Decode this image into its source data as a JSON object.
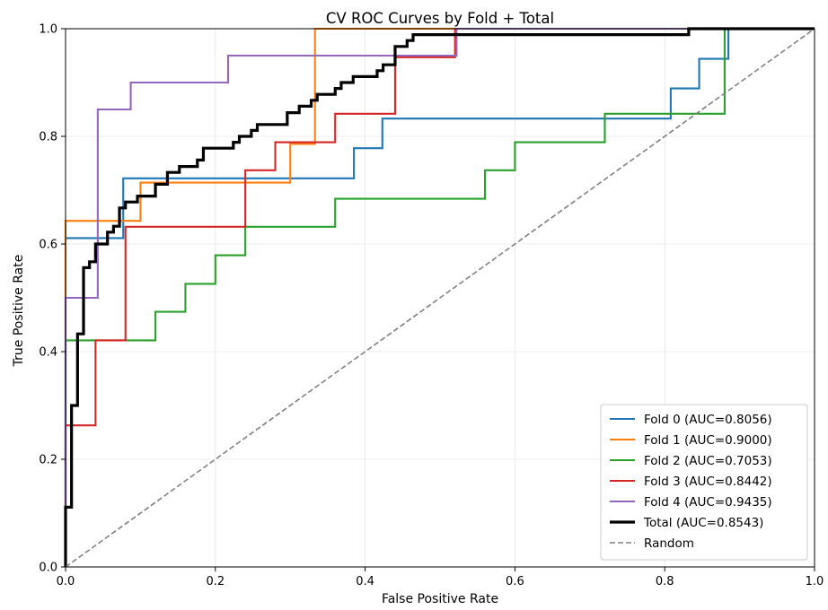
{
  "chart_data": {
    "type": "line",
    "title": "CV ROC Curves by Fold + Total",
    "xlabel": "False Positive Rate",
    "ylabel": "True Positive Rate",
    "xlim": [
      0,
      1
    ],
    "ylim": [
      0,
      1
    ],
    "xticks": [
      "0.0",
      "0.2",
      "0.4",
      "0.6",
      "0.8",
      "1.0"
    ],
    "yticks": [
      "0.0",
      "0.2",
      "0.4",
      "0.6",
      "0.8",
      "1.0"
    ],
    "grid": true,
    "legend_position": "lower-right",
    "series": [
      {
        "name": "Fold 0 (AUC=0.8056)",
        "color": "#1f77b4",
        "style": "solid",
        "x": [
          0,
          0,
          0.077,
          0.077,
          0.385,
          0.385,
          0.423,
          0.423,
          0.808,
          0.808,
          0.846,
          0.846,
          0.885,
          0.885,
          1.0
        ],
        "y": [
          0,
          0.611,
          0.611,
          0.722,
          0.722,
          0.778,
          0.778,
          0.833,
          0.833,
          0.889,
          0.889,
          0.944,
          0.944,
          1.0,
          1.0
        ]
      },
      {
        "name": "Fold 1 (AUC=0.9000)",
        "color": "#ff7f0e",
        "style": "solid",
        "x": [
          0,
          0,
          0.1,
          0.1,
          0.3,
          0.3,
          0.333,
          0.333,
          1.0
        ],
        "y": [
          0,
          0.643,
          0.643,
          0.714,
          0.714,
          0.786,
          0.786,
          1.0,
          1.0
        ]
      },
      {
        "name": "Fold 2 (AUC=0.7053)",
        "color": "#2ca02c",
        "style": "solid",
        "x": [
          0,
          0,
          0.12,
          0.12,
          0.16,
          0.16,
          0.2,
          0.2,
          0.24,
          0.24,
          0.36,
          0.36,
          0.56,
          0.56,
          0.6,
          0.6,
          0.72,
          0.72,
          0.88,
          0.88,
          1.0
        ],
        "y": [
          0,
          0.421,
          0.421,
          0.474,
          0.474,
          0.526,
          0.526,
          0.579,
          0.579,
          0.632,
          0.632,
          0.684,
          0.684,
          0.737,
          0.737,
          0.789,
          0.789,
          0.842,
          0.842,
          1.0,
          1.0
        ]
      },
      {
        "name": "Fold 3 (AUC=0.8442)",
        "color": "#d62728",
        "style": "solid",
        "x": [
          0,
          0,
          0.04,
          0.04,
          0.08,
          0.08,
          0.24,
          0.24,
          0.28,
          0.28,
          0.36,
          0.36,
          0.44,
          0.44,
          0.52,
          0.52,
          1.0
        ],
        "y": [
          0,
          0.263,
          0.263,
          0.421,
          0.421,
          0.632,
          0.632,
          0.737,
          0.737,
          0.789,
          0.789,
          0.842,
          0.842,
          0.947,
          0.947,
          1.0,
          1.0
        ]
      },
      {
        "name": "Fold 4 (AUC=0.9435)",
        "color": "#9467bd",
        "style": "solid",
        "x": [
          0,
          0,
          0.043,
          0.043,
          0.087,
          0.087,
          0.217,
          0.217,
          0.522,
          0.522,
          1.0
        ],
        "y": [
          0,
          0.5,
          0.5,
          0.85,
          0.85,
          0.9,
          0.9,
          0.95,
          0.95,
          1.0,
          1.0
        ]
      },
      {
        "name": "Total (AUC=0.8543)",
        "color": "#000000",
        "style": "solid",
        "bold": true,
        "x": [
          0,
          0,
          0.008,
          0.008,
          0.016,
          0.016,
          0.024,
          0.024,
          0.032,
          0.032,
          0.04,
          0.04,
          0.056,
          0.056,
          0.064,
          0.064,
          0.072,
          0.072,
          0.08,
          0.08,
          0.096,
          0.096,
          0.12,
          0.12,
          0.136,
          0.136,
          0.152,
          0.152,
          0.176,
          0.176,
          0.184,
          0.184,
          0.224,
          0.224,
          0.232,
          0.232,
          0.248,
          0.248,
          0.256,
          0.256,
          0.296,
          0.296,
          0.312,
          0.312,
          0.328,
          0.328,
          0.336,
          0.336,
          0.36,
          0.36,
          0.368,
          0.368,
          0.384,
          0.384,
          0.392,
          0.392,
          0.416,
          0.416,
          0.424,
          0.424,
          0.44,
          0.44,
          0.456,
          0.456,
          0.464,
          0.464,
          0.48,
          0.48,
          0.52,
          0.52,
          0.616,
          0.616,
          0.624,
          0.624,
          0.632,
          0.632,
          0.64,
          0.64,
          0.648,
          0.648,
          0.656,
          0.656,
          0.664,
          0.664,
          0.696,
          0.696,
          0.712,
          0.712,
          0.728,
          0.728,
          0.736,
          0.736,
          0.744,
          0.744,
          0.76,
          0.76,
          0.776,
          0.776,
          0.784,
          0.784,
          0.8,
          0.8,
          0.808,
          0.808,
          0.816,
          0.816,
          0.832,
          0.832,
          1.0
        ],
        "y": [
          0,
          0.111,
          0.111,
          0.3,
          0.3,
          0.433,
          0.433,
          0.556,
          0.556,
          0.567,
          0.567,
          0.6,
          0.6,
          0.622,
          0.622,
          0.633,
          0.633,
          0.667,
          0.667,
          0.678,
          0.678,
          0.689,
          0.689,
          0.711,
          0.711,
          0.733,
          0.733,
          0.744,
          0.744,
          0.756,
          0.756,
          0.778,
          0.778,
          0.789,
          0.789,
          0.8,
          0.8,
          0.811,
          0.811,
          0.822,
          0.822,
          0.844,
          0.844,
          0.856,
          0.856,
          0.867,
          0.867,
          0.878,
          0.878,
          0.889,
          0.889,
          0.9,
          0.9,
          0.911,
          0.911,
          0.911,
          0.911,
          0.922,
          0.922,
          0.933,
          0.933,
          0.967,
          0.967,
          0.978,
          0.978,
          0.989,
          0.989,
          0.989,
          0.989,
          0.989,
          0.989,
          0.989,
          0.989,
          0.989,
          0.989,
          0.989,
          0.989,
          0.989,
          0.989,
          0.989,
          0.989,
          0.989,
          0.989,
          0.989,
          0.989,
          0.989,
          0.989,
          0.989,
          0.989,
          0.989,
          0.989,
          0.989,
          0.989,
          0.989,
          0.989,
          0.989,
          0.989,
          0.989,
          0.989,
          0.989,
          0.989,
          0.989,
          0.989,
          0.989,
          0.989,
          0.989,
          0.989,
          1.0,
          1.0
        ]
      },
      {
        "name": "Random",
        "color": "#808080",
        "style": "dashed",
        "x": [
          0,
          1
        ],
        "y": [
          0,
          1
        ]
      }
    ]
  }
}
